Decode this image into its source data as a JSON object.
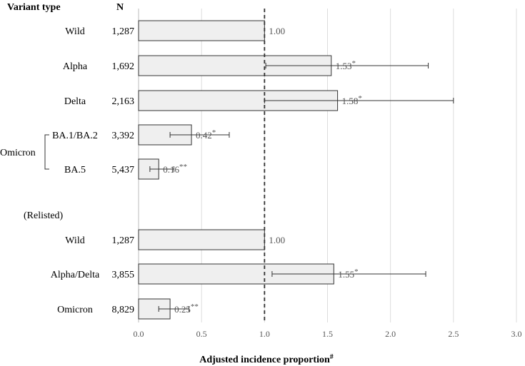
{
  "chart_data": {
    "type": "bar",
    "orientation": "horizontal",
    "headers": {
      "variant": "Variant type",
      "n": "N"
    },
    "groups": [
      {
        "label": "Omicron",
        "members": [
          3,
          4
        ]
      }
    ],
    "section_labels": [
      {
        "label": "(Relisted)",
        "before_row": 5
      }
    ],
    "rows": [
      {
        "label": "Wild",
        "n": "1,287",
        "value": 1.0,
        "value_label": "1.00",
        "sig": "",
        "ci": null
      },
      {
        "label": "Alpha",
        "n": "1,692",
        "value": 1.53,
        "value_label": "1.53",
        "sig": "*",
        "ci": [
          1.01,
          2.3
        ]
      },
      {
        "label": "Delta",
        "n": "2,163",
        "value": 1.58,
        "value_label": "1.58",
        "sig": "*",
        "ci": [
          1.0,
          2.5
        ]
      },
      {
        "label": "BA.1/BA.2",
        "n": "3,392",
        "value": 0.42,
        "value_label": "0.42",
        "sig": "*",
        "ci": [
          0.25,
          0.72
        ]
      },
      {
        "label": "BA.5",
        "n": "5,437",
        "value": 0.16,
        "value_label": "0.16",
        "sig": "**",
        "ci": [
          0.09,
          0.28
        ]
      },
      {
        "label": "Wild",
        "n": "1,287",
        "value": 1.0,
        "value_label": "1.00",
        "sig": "",
        "ci": null
      },
      {
        "label": "Alpha/Delta",
        "n": "3,855",
        "value": 1.55,
        "value_label": "1.55",
        "sig": "*",
        "ci": [
          1.06,
          2.28
        ]
      },
      {
        "label": "Omicron",
        "n": "8,829",
        "value": 0.25,
        "value_label": "0.25",
        "sig": "**",
        "ci": [
          0.16,
          0.4
        ]
      }
    ],
    "xlim": [
      0,
      3.0
    ],
    "xticks": [
      "0.0",
      "0.5",
      "1.0",
      "1.5",
      "2.0",
      "2.5",
      "3.0"
    ],
    "reference_line": 1.0,
    "xlabel": "Adjusted incidence proportion",
    "xlabel_mark": "#",
    "grid": "vertical",
    "colors": {
      "bar_fill": "#efefef",
      "bar_stroke": "#333333",
      "grid": "#dddddd",
      "reference": "#333333"
    }
  }
}
